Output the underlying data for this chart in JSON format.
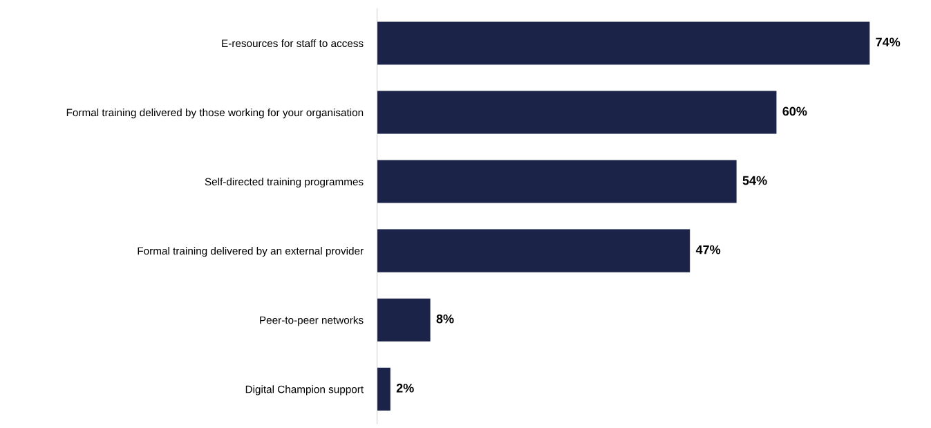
{
  "chart_data": {
    "type": "bar",
    "orientation": "horizontal",
    "categories": [
      "E-resources for staff to access",
      "Formal training delivered by those working for your organisation",
      "Self-directed training programmes",
      "Formal training delivered by an external provider",
      "Peer-to-peer networks",
      "Digital Champion support"
    ],
    "values": [
      74,
      60,
      54,
      47,
      8,
      2
    ],
    "value_labels": [
      "74%",
      "60%",
      "54%",
      "47%",
      "8%",
      "2%"
    ],
    "color": "#1b2349",
    "grid": false,
    "legend": false
  }
}
